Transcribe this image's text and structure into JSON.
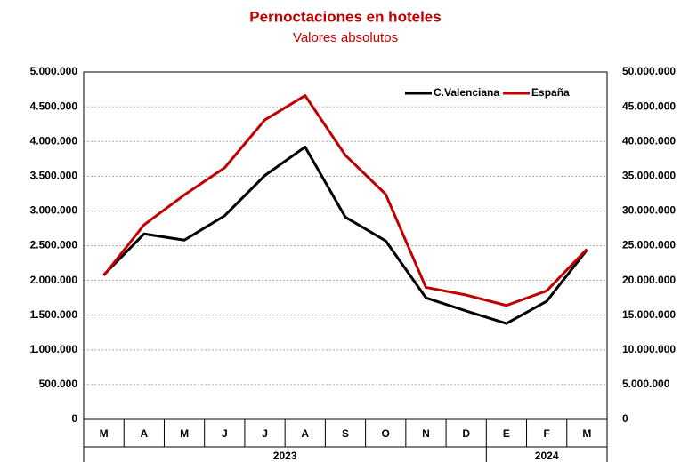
{
  "chart_data": {
    "type": "line",
    "title": "Pernoctaciones en hoteles",
    "subtitle": "Valores absolutos",
    "categories": [
      "M",
      "A",
      "M",
      "J",
      "J",
      "A",
      "S",
      "O",
      "N",
      "D",
      "E",
      "F",
      "M"
    ],
    "x_groups": [
      {
        "label": "2023",
        "count": 10
      },
      {
        "label": "2024",
        "count": 3
      }
    ],
    "series": [
      {
        "name": "C.Valenciana",
        "color": "#000000",
        "axis": "y",
        "values": [
          2080000,
          2670000,
          2580000,
          2930000,
          3510000,
          3920000,
          2910000,
          2570000,
          1750000,
          1560000,
          1380000,
          1700000,
          2440000
        ]
      },
      {
        "name": "España",
        "color": "#c00000",
        "axis": "y2",
        "values": [
          20700000,
          28000000,
          32300000,
          36200000,
          43100000,
          46600000,
          38000000,
          32400000,
          19000000,
          17900000,
          16400000,
          18500000,
          24500000
        ]
      }
    ],
    "ylim": [
      0,
      5000000
    ],
    "yticks": [
      0,
      {
        "value": 500000,
        "label": "500.000"
      },
      {
        "value": 1000000,
        "label": "1.000.000"
      },
      {
        "value": 1500000,
        "label": "1.500.000"
      },
      {
        "value": 2000000,
        "label": "2.000.000"
      },
      {
        "value": 2500000,
        "label": "2.500.000"
      },
      {
        "value": 3000000,
        "label": "3.000.000"
      },
      {
        "value": 3500000,
        "label": "3.500.000"
      },
      {
        "value": 4000000,
        "label": "4.000.000"
      },
      {
        "value": 4500000,
        "label": "4.500.000"
      },
      {
        "value": 5000000,
        "label": "5.000.000"
      }
    ],
    "y2lim": [
      0,
      50000000
    ],
    "y2ticks": [
      0,
      {
        "value": 5000000,
        "label": "5.000.000"
      },
      {
        "value": 10000000,
        "label": "10.000.000"
      },
      {
        "value": 15000000,
        "label": "15.000.000"
      },
      {
        "value": 20000000,
        "label": "20.000.000"
      },
      {
        "value": 25000000,
        "label": "25.000.000"
      },
      {
        "value": 30000000,
        "label": "30.000.000"
      },
      {
        "value": 35000000,
        "label": "35.000.000"
      },
      {
        "value": 40000000,
        "label": "40.000.000"
      },
      {
        "value": 45000000,
        "label": "45.000.000"
      },
      {
        "value": 50000000,
        "label": "50.000.000"
      }
    ],
    "grid": true,
    "legend": "upper right"
  }
}
